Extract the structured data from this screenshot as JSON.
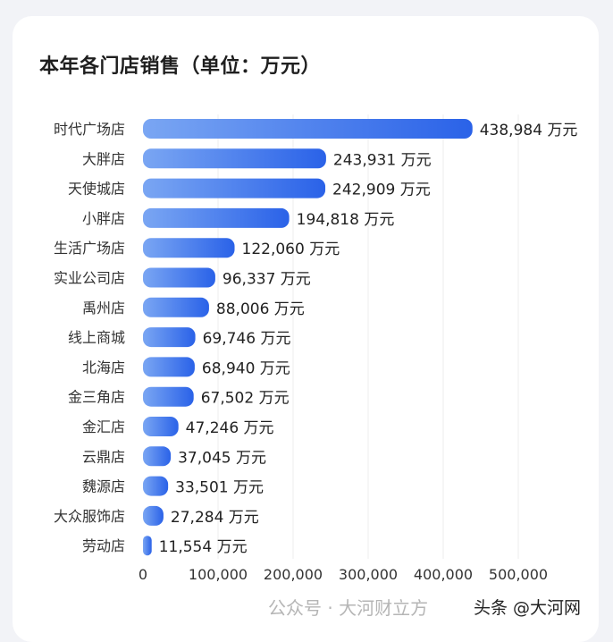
{
  "chart_data": {
    "type": "bar",
    "orientation": "horizontal",
    "title": "本年各门店销售（单位：万元）",
    "categories": [
      "时代广场店",
      "大胖店",
      "天使城店",
      "小胖店",
      "生活广场店",
      "实业公司店",
      "禹州店",
      "线上商城",
      "北海店",
      "金三角店",
      "金汇店",
      "云鼎店",
      "魏源店",
      "大众服饰店",
      "劳动店"
    ],
    "values": [
      438984,
      243931,
      242909,
      194818,
      122060,
      96337,
      88006,
      69746,
      68940,
      67502,
      47246,
      37045,
      33501,
      27284,
      11554
    ],
    "value_unit": "万元",
    "xlim": [
      0,
      500000
    ],
    "xticks": [
      "0",
      "100,000",
      "200,000",
      "300,000",
      "400,000",
      "500,000"
    ],
    "grid": true,
    "bar_color_start": "#7aa6f3",
    "bar_color_end": "#2a62e8"
  },
  "watermark": {
    "text1": "公众号 · 大河财立方",
    "text2": "头条 @大河网"
  }
}
